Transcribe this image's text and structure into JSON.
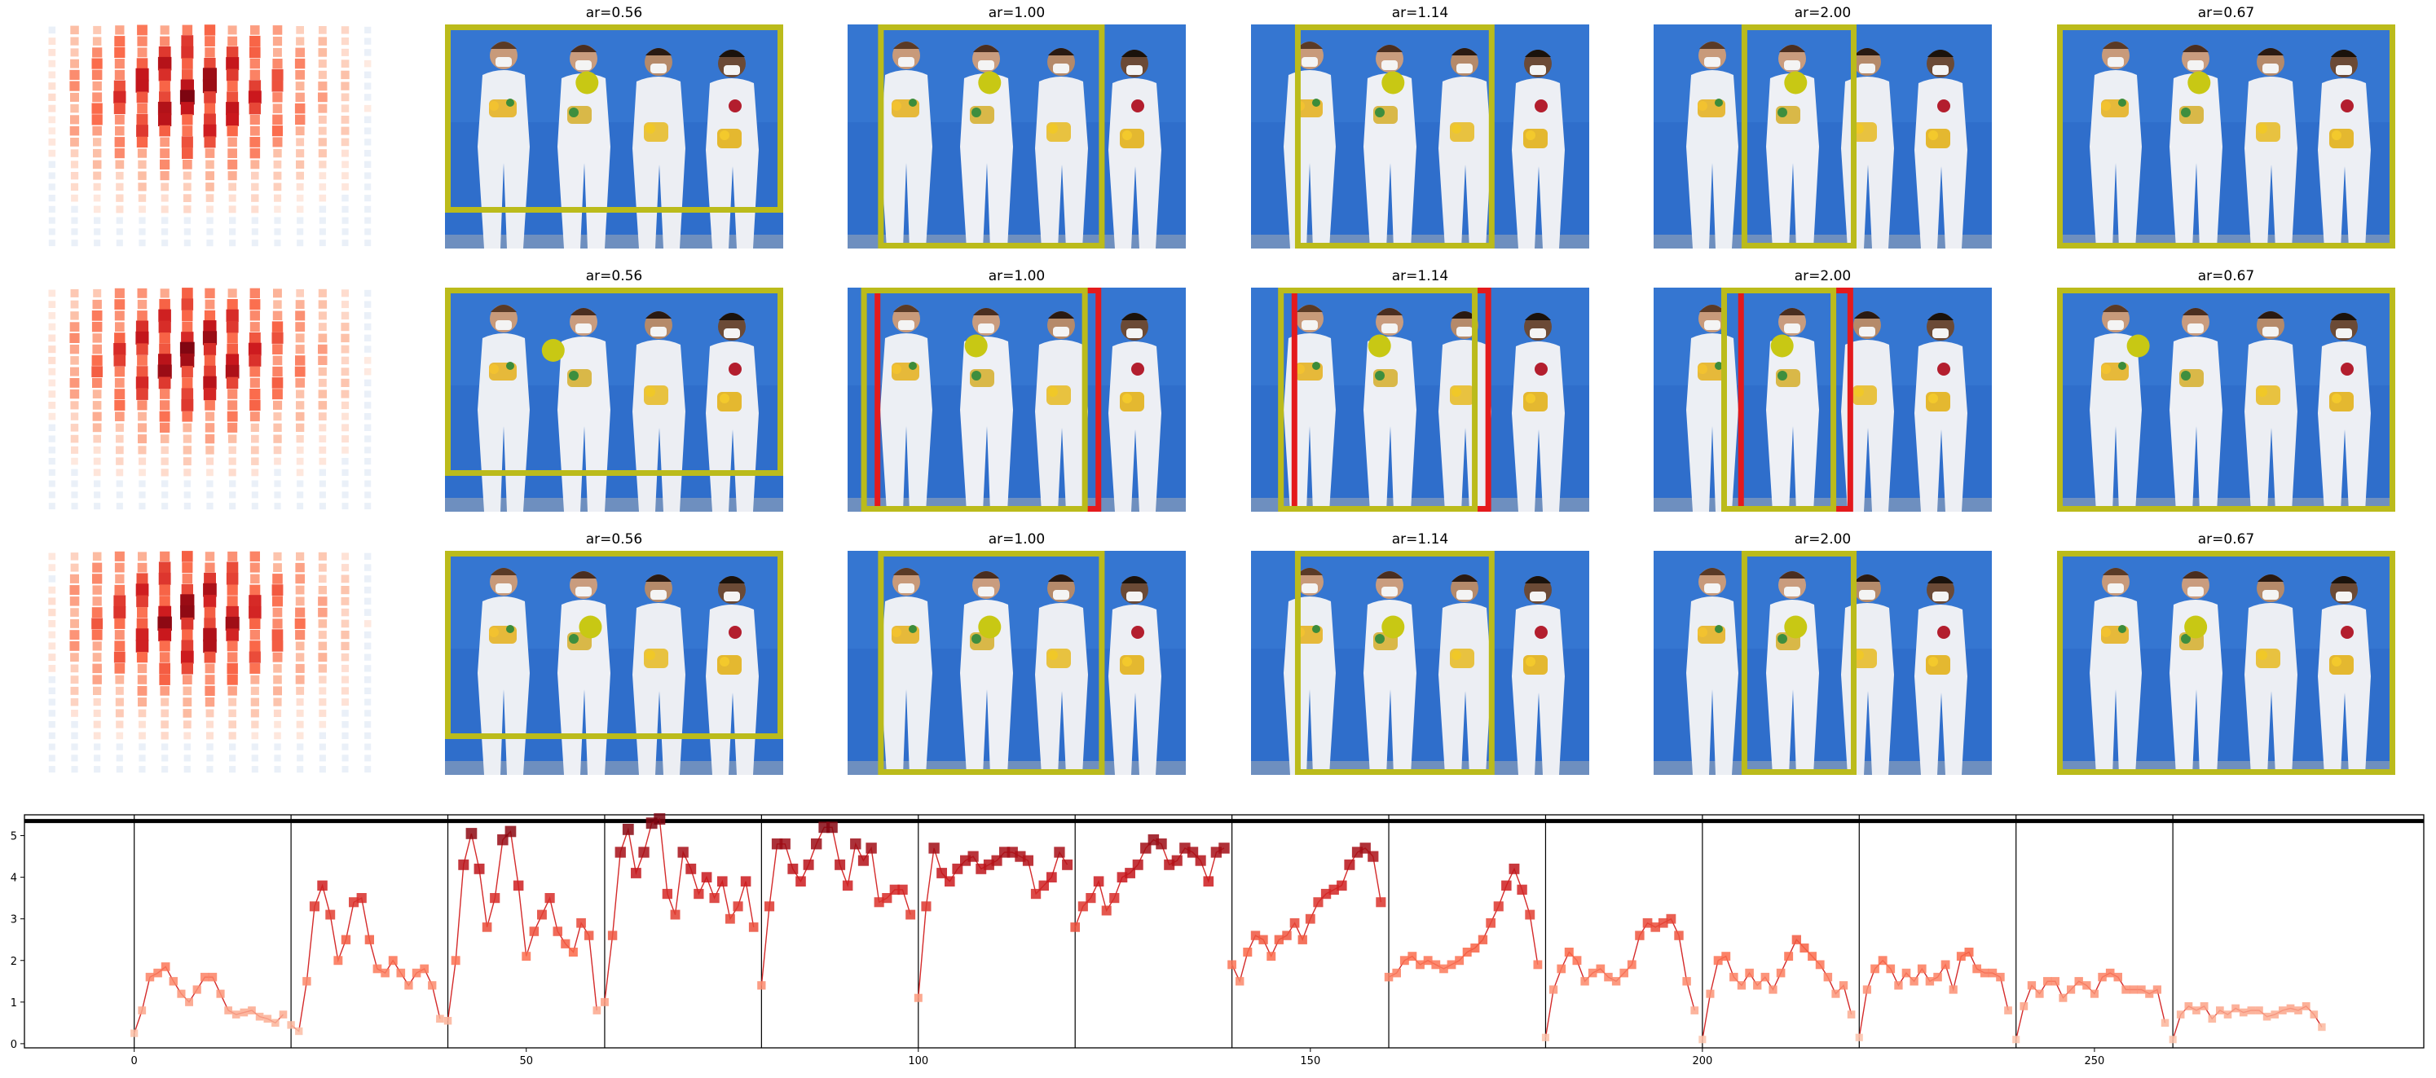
{
  "colors": {
    "crop_box": "#BBBB1B",
    "saliency_dot": "#C8C814",
    "alt_box": "#E41A1C",
    "sky": "#2F6ECB",
    "curve": "#D42A2A"
  },
  "panels": {
    "rows": [
      {
        "columns": [
          {
            "title": "ar=0.56",
            "alt_box": false
          },
          {
            "title": "ar=1.00",
            "alt_box": false
          },
          {
            "title": "ar=1.14",
            "alt_box": false
          },
          {
            "title": "ar=2.00",
            "alt_box": false
          },
          {
            "title": "ar=0.67",
            "alt_box": false
          }
        ]
      },
      {
        "columns": [
          {
            "title": "ar=0.56",
            "alt_box": false
          },
          {
            "title": "ar=1.00",
            "alt_box": true
          },
          {
            "title": "ar=1.14",
            "alt_box": true
          },
          {
            "title": "ar=2.00",
            "alt_box": true
          },
          {
            "title": "ar=0.67",
            "alt_box": false
          }
        ]
      },
      {
        "columns": [
          {
            "title": "ar=0.56",
            "alt_box": false
          },
          {
            "title": "ar=1.00",
            "alt_box": false
          },
          {
            "title": "ar=1.14",
            "alt_box": false
          },
          {
            "title": "ar=2.00",
            "alt_box": false
          },
          {
            "title": "ar=0.67",
            "alt_box": false
          }
        ]
      }
    ]
  },
  "chart_data": {
    "type": "line",
    "title": "",
    "xlabel": "",
    "ylabel": "",
    "xlim": [
      -14,
      292
    ],
    "ylim": [
      -0.1,
      5.5
    ],
    "xticks": [
      0,
      50,
      100,
      150,
      200,
      250
    ],
    "yticks": [
      0,
      1,
      2,
      3,
      4,
      5
    ],
    "grid": false,
    "horizontal_line_y": 5.35,
    "segment_boundaries": [
      0,
      20,
      40,
      60,
      80,
      100,
      120,
      140,
      160,
      180,
      200,
      220,
      240,
      260
    ],
    "segments": [
      {
        "start": 0,
        "values": [
          0.25,
          0.8,
          1.6,
          1.7,
          1.85,
          1.5,
          1.2,
          1.0,
          1.3,
          1.6,
          1.6,
          1.2,
          0.8,
          0.7,
          0.75,
          0.8,
          0.65,
          0.6,
          0.5,
          0.7
        ]
      },
      {
        "start": 20,
        "values": [
          0.45,
          0.3,
          1.5,
          3.3,
          3.8,
          3.1,
          2.0,
          2.5,
          3.4,
          3.5,
          2.5,
          1.8,
          1.7,
          2.0,
          1.7,
          1.4,
          1.7,
          1.8,
          1.4,
          0.6
        ]
      },
      {
        "start": 40,
        "values": [
          0.55,
          2.0,
          4.3,
          5.05,
          4.2,
          2.8,
          3.5,
          4.9,
          5.1,
          3.8,
          2.1,
          2.7,
          3.1,
          3.5,
          2.7,
          2.4,
          2.2,
          2.9,
          2.6,
          0.8
        ]
      },
      {
        "start": 60,
        "values": [
          1.0,
          2.6,
          4.6,
          5.15,
          4.1,
          4.6,
          5.3,
          5.4,
          3.6,
          3.1,
          4.6,
          4.2,
          3.6,
          4.0,
          3.5,
          3.9,
          3.0,
          3.3,
          3.9,
          2.8
        ]
      },
      {
        "start": 80,
        "values": [
          1.4,
          3.3,
          4.8,
          4.8,
          4.2,
          3.9,
          4.3,
          4.8,
          5.2,
          5.2,
          4.3,
          3.8,
          4.8,
          4.4,
          4.7,
          3.4,
          3.5,
          3.7,
          3.7,
          3.1
        ]
      },
      {
        "start": 100,
        "values": [
          1.1,
          3.3,
          4.7,
          4.1,
          3.9,
          4.2,
          4.4,
          4.5,
          4.2,
          4.3,
          4.4,
          4.6,
          4.6,
          4.5,
          4.4,
          3.6,
          3.8,
          4.0,
          4.6,
          4.3
        ]
      },
      {
        "start": 120,
        "values": [
          2.8,
          3.3,
          3.5,
          3.9,
          3.2,
          3.5,
          4.0,
          4.1,
          4.3,
          4.7,
          4.9,
          4.8,
          4.3,
          4.4,
          4.7,
          4.6,
          4.4,
          3.9,
          4.6,
          4.7
        ]
      },
      {
        "start": 140,
        "values": [
          1.9,
          1.5,
          2.2,
          2.6,
          2.5,
          2.1,
          2.5,
          2.6,
          2.9,
          2.5,
          3.0,
          3.4,
          3.6,
          3.7,
          3.8,
          4.3,
          4.6,
          4.7,
          4.5,
          3.4
        ]
      },
      {
        "start": 160,
        "values": [
          1.6,
          1.7,
          2.0,
          2.1,
          1.9,
          2.0,
          1.9,
          1.8,
          1.9,
          2.0,
          2.2,
          2.3,
          2.5,
          2.9,
          3.3,
          3.8,
          4.2,
          3.7,
          3.1,
          1.9
        ]
      },
      {
        "start": 180,
        "values": [
          0.15,
          1.3,
          1.8,
          2.2,
          2.0,
          1.5,
          1.7,
          1.8,
          1.6,
          1.5,
          1.7,
          1.9,
          2.6,
          2.9,
          2.8,
          2.9,
          3.0,
          2.6,
          1.5,
          0.8
        ]
      },
      {
        "start": 200,
        "values": [
          0.1,
          1.2,
          2.0,
          2.1,
          1.6,
          1.4,
          1.7,
          1.4,
          1.6,
          1.3,
          1.7,
          2.1,
          2.5,
          2.3,
          2.1,
          1.9,
          1.6,
          1.2,
          1.4,
          0.7
        ]
      },
      {
        "start": 220,
        "values": [
          0.15,
          1.3,
          1.8,
          2.0,
          1.8,
          1.4,
          1.7,
          1.5,
          1.8,
          1.5,
          1.6,
          1.9,
          1.3,
          2.1,
          2.2,
          1.8,
          1.7,
          1.7,
          1.6,
          0.8
        ]
      },
      {
        "start": 240,
        "values": [
          0.1,
          0.9,
          1.4,
          1.2,
          1.5,
          1.5,
          1.1,
          1.3,
          1.5,
          1.4,
          1.2,
          1.6,
          1.7,
          1.6,
          1.3,
          1.3,
          1.3,
          1.2,
          1.3,
          0.5
        ]
      },
      {
        "start": 260,
        "values": [
          0.1,
          0.7,
          0.9,
          0.8,
          0.9,
          0.6,
          0.8,
          0.7,
          0.85,
          0.75,
          0.8,
          0.8,
          0.65,
          0.7,
          0.8,
          0.85,
          0.8,
          0.9,
          0.7,
          0.4
        ]
      }
    ]
  }
}
